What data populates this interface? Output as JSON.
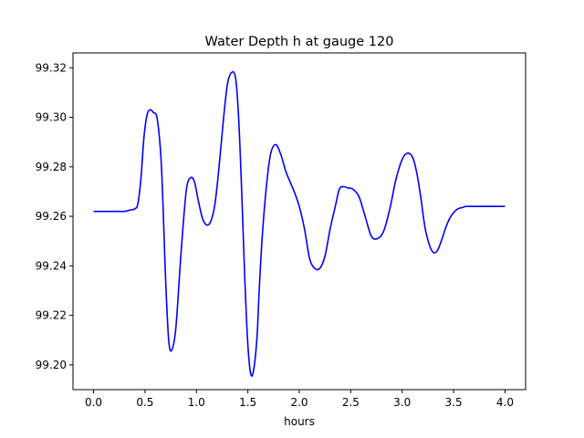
{
  "chart_data": {
    "type": "line",
    "title": "Water Depth h at gauge 120",
    "xlabel": "hours",
    "ylabel": "",
    "xlim": [
      -0.2,
      4.2
    ],
    "ylim": [
      99.19,
      99.326
    ],
    "xticks": [
      0.0,
      0.5,
      1.0,
      1.5,
      2.0,
      2.5,
      3.0,
      3.5,
      4.0
    ],
    "xtick_labels": [
      "0.0",
      "0.5",
      "1.0",
      "1.5",
      "2.0",
      "2.5",
      "3.0",
      "3.5",
      "4.0"
    ],
    "yticks": [
      99.2,
      99.22,
      99.24,
      99.26,
      99.28,
      99.3,
      99.32
    ],
    "ytick_labels": [
      "99.20",
      "99.22",
      "99.24",
      "99.26",
      "99.28",
      "99.30",
      "99.32"
    ],
    "grid": false,
    "series": [
      {
        "color": "#0000ff",
        "x": [
          0.0,
          0.1,
          0.2,
          0.3,
          0.35,
          0.4,
          0.43,
          0.46,
          0.49,
          0.52,
          0.55,
          0.58,
          0.62,
          0.66,
          0.7,
          0.73,
          0.76,
          0.8,
          0.85,
          0.9,
          0.94,
          0.98,
          1.02,
          1.06,
          1.1,
          1.14,
          1.18,
          1.22,
          1.26,
          1.3,
          1.34,
          1.38,
          1.41,
          1.44,
          1.47,
          1.5,
          1.53,
          1.56,
          1.59,
          1.61,
          1.64,
          1.68,
          1.72,
          1.77,
          1.82,
          1.87,
          1.91,
          1.95,
          2.0,
          2.05,
          2.1,
          2.15,
          2.2,
          2.25,
          2.3,
          2.35,
          2.39,
          2.43,
          2.47,
          2.52,
          2.58,
          2.64,
          2.7,
          2.76,
          2.82,
          2.88,
          2.94,
          3.0,
          3.05,
          3.1,
          3.14,
          3.18,
          3.22,
          3.26,
          3.3,
          3.34,
          3.38,
          3.42,
          3.46,
          3.5,
          3.54,
          3.58,
          3.62,
          3.66,
          3.7,
          3.74,
          3.78,
          3.82,
          3.87,
          3.92,
          3.96,
          4.0
        ],
        "y": [
          99.262,
          99.262,
          99.262,
          99.262,
          99.2625,
          99.263,
          99.265,
          99.275,
          99.292,
          99.301,
          99.303,
          99.302,
          99.299,
          99.28,
          99.235,
          99.21,
          99.206,
          99.215,
          99.245,
          99.27,
          99.2755,
          99.274,
          99.266,
          99.259,
          99.2565,
          99.258,
          99.265,
          99.28,
          99.298,
          99.313,
          99.318,
          99.316,
          99.3,
          99.27,
          99.235,
          99.208,
          99.196,
          99.199,
          99.212,
          99.23,
          99.252,
          99.272,
          99.285,
          99.289,
          99.285,
          99.278,
          99.274,
          99.27,
          99.264,
          99.255,
          99.243,
          99.239,
          99.239,
          99.244,
          99.255,
          99.264,
          99.271,
          99.272,
          99.2715,
          99.271,
          99.268,
          99.26,
          99.252,
          99.251,
          99.254,
          99.263,
          99.275,
          99.283,
          99.2855,
          99.284,
          99.278,
          99.268,
          99.256,
          99.249,
          99.2455,
          99.246,
          99.25,
          99.255,
          99.259,
          99.2615,
          99.263,
          99.2635,
          99.264,
          99.264,
          99.264,
          99.264,
          99.264,
          99.264,
          99.264,
          99.264,
          99.264,
          99.264
        ]
      }
    ]
  }
}
